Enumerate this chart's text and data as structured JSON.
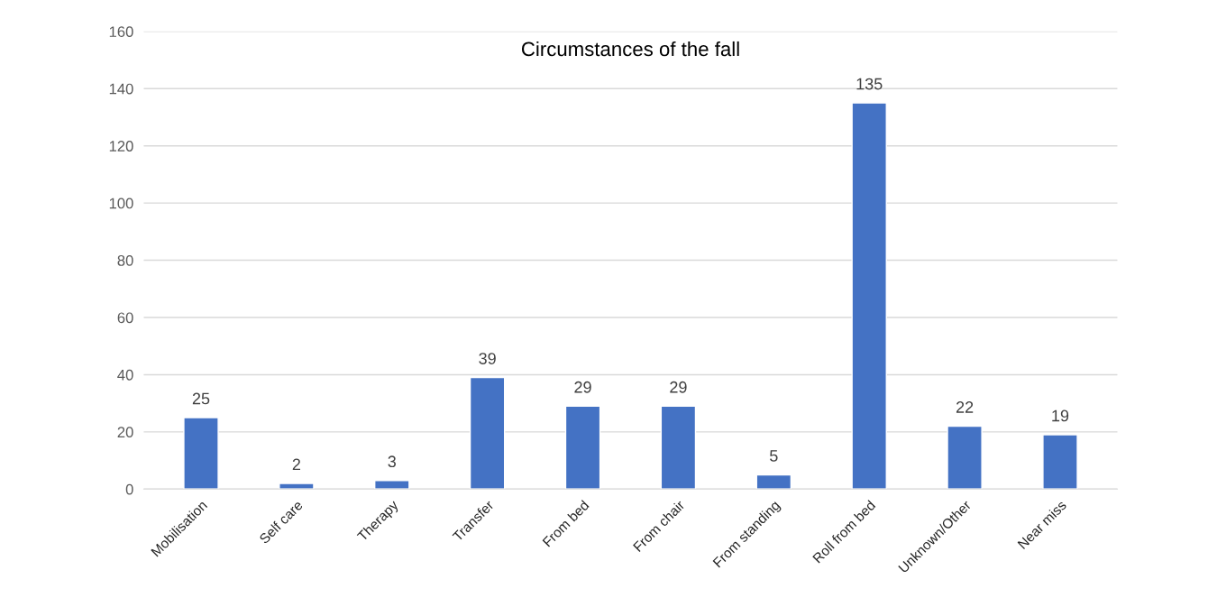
{
  "chart_data": {
    "type": "bar",
    "title": "Circumstances of the fall",
    "categories": [
      "Mobilisation",
      "Self care",
      "Therapy",
      "Transfer",
      "From bed",
      "From chair",
      "From standing",
      "Roll from bed",
      "Unknown/Other",
      "Near miss"
    ],
    "values": [
      25,
      2,
      3,
      39,
      29,
      29,
      5,
      135,
      22,
      19
    ],
    "color": "#4472c4",
    "ylim": [
      0,
      160
    ],
    "yticks": [
      0,
      20,
      40,
      60,
      80,
      100,
      120,
      140,
      160
    ],
    "grid": "y",
    "data_labels": true
  }
}
